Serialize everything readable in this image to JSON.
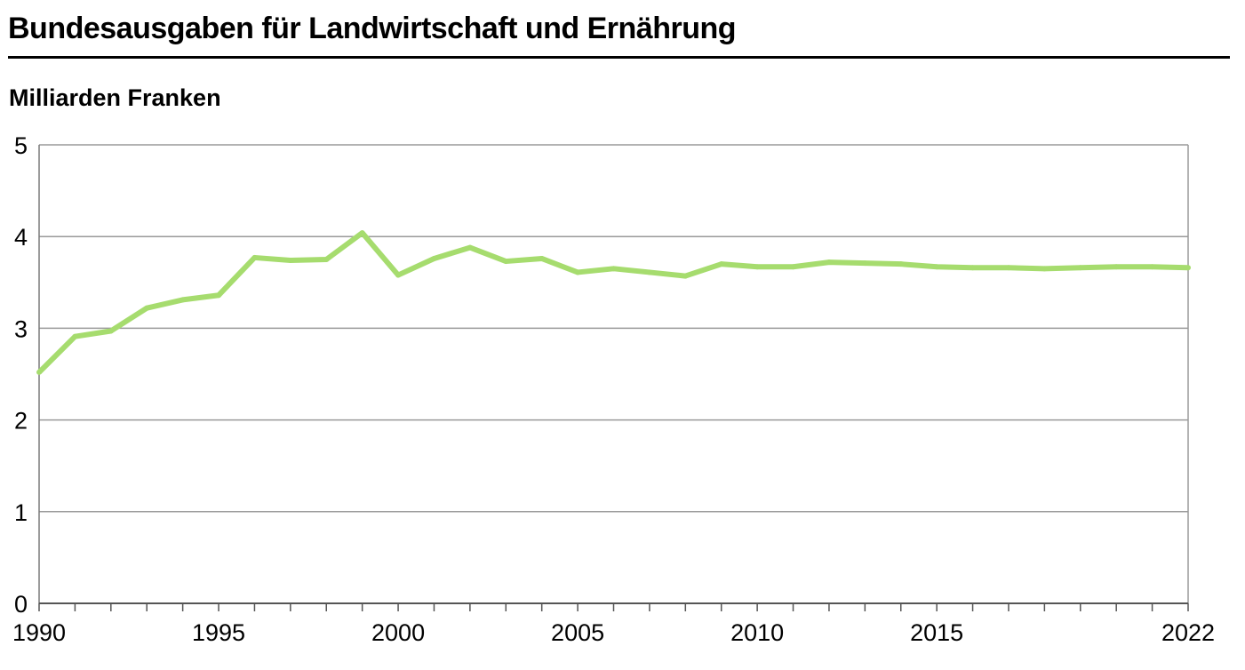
{
  "chart_data": {
    "type": "line",
    "title": "Bundesausgaben für Landwirtschaft und Ernährung",
    "ylabel": "Milliarden Franken",
    "xlabel": "",
    "xlim": [
      1990,
      2022
    ],
    "ylim": [
      0,
      5
    ],
    "x_ticks": [
      1990,
      1995,
      2000,
      2005,
      2010,
      2015,
      2022
    ],
    "y_ticks": [
      0,
      1,
      2,
      3,
      4,
      5
    ],
    "grid": true,
    "line_color": "#a6dc6e",
    "series": [
      {
        "x": [
          1990,
          1991,
          1992,
          1993,
          1994,
          1995,
          1996,
          1997,
          1998,
          1999,
          2000,
          2001,
          2002,
          2003,
          2004,
          2005,
          2006,
          2007,
          2008,
          2009,
          2010,
          2011,
          2012,
          2013,
          2014,
          2015,
          2016,
          2017,
          2018,
          2019,
          2020,
          2021,
          2022
        ],
        "values": [
          2.52,
          2.91,
          2.97,
          3.22,
          3.31,
          3.36,
          3.77,
          3.74,
          3.75,
          4.04,
          3.58,
          3.76,
          3.88,
          3.73,
          3.76,
          3.61,
          3.65,
          3.61,
          3.57,
          3.7,
          3.67,
          3.67,
          3.72,
          3.71,
          3.7,
          3.67,
          3.66,
          3.66,
          3.65,
          3.66,
          3.67,
          3.67,
          3.66
        ]
      }
    ]
  }
}
